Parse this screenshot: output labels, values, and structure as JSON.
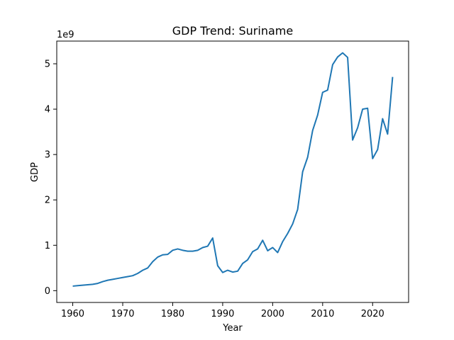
{
  "chart_data": {
    "type": "line",
    "title": "GDP Trend: Suriname",
    "xlabel": "Year",
    "ylabel": "GDP",
    "y_offset_label": "1e9",
    "xlim": [
      1956.8,
      2027.2
    ],
    "ylim": [
      -0.26,
      5.5
    ],
    "x_ticks": [
      1960,
      1970,
      1980,
      1990,
      2000,
      2010,
      2020
    ],
    "y_ticks": [
      0,
      1,
      2,
      3,
      4,
      5
    ],
    "grid": false,
    "line_color": "#1f77b4",
    "series": [
      {
        "x": [
          1960,
          1961,
          1962,
          1963,
          1964,
          1965,
          1966,
          1967,
          1968,
          1969,
          1970,
          1971,
          1972,
          1973,
          1974,
          1975,
          1976,
          1977,
          1978,
          1979,
          1980,
          1981,
          1982,
          1983,
          1984,
          1985,
          1986,
          1987,
          1988,
          1989,
          1990,
          1991,
          1992,
          1993,
          1994,
          1995,
          1996,
          1997,
          1998,
          1999,
          2000,
          2001,
          2002,
          2003,
          2004,
          2005,
          2006,
          2007,
          2008,
          2009,
          2010,
          2011,
          2012,
          2013,
          2014,
          2015,
          2016,
          2017,
          2018,
          2019,
          2020,
          2021,
          2022,
          2023,
          2024
        ],
        "values": [
          0.1,
          0.11,
          0.12,
          0.13,
          0.14,
          0.16,
          0.2,
          0.23,
          0.25,
          0.27,
          0.29,
          0.31,
          0.33,
          0.38,
          0.45,
          0.5,
          0.64,
          0.74,
          0.79,
          0.8,
          0.89,
          0.92,
          0.89,
          0.87,
          0.87,
          0.89,
          0.95,
          0.98,
          1.16,
          0.55,
          0.4,
          0.45,
          0.41,
          0.43,
          0.6,
          0.68,
          0.86,
          0.92,
          1.11,
          0.88,
          0.95,
          0.84,
          1.08,
          1.26,
          1.47,
          1.79,
          2.62,
          2.94,
          3.53,
          3.87,
          4.37,
          4.42,
          4.98,
          5.15,
          5.24,
          5.14,
          3.32,
          3.59,
          4.0,
          4.02,
          2.91,
          3.11,
          3.79,
          3.45,
          4.71
        ]
      }
    ]
  }
}
